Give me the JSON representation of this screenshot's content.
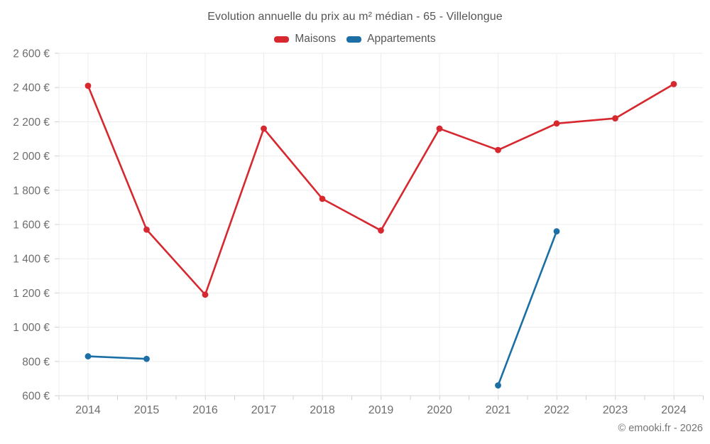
{
  "header": {
    "title": "Evolution annuelle du prix au m² médian - 65 - Villelongue"
  },
  "footer": {
    "credit": "© emooki.fr - 2026"
  },
  "colors": {
    "maisons": "#d7282f",
    "appartements": "#1b6fa5",
    "gridline": "#ececec",
    "axis_line": "#d8d8d8",
    "tick": "#cfcfcf",
    "axis_text": "#6d6d6d"
  },
  "chart_data": {
    "type": "line",
    "title": "Evolution annuelle du prix au m² médian - 65 - Villelongue",
    "xlabel": "",
    "ylabel": "",
    "x_labels": [
      "2014",
      "2015",
      "2016",
      "2017",
      "2018",
      "2019",
      "2020",
      "2021",
      "2022",
      "2023",
      "2024"
    ],
    "ylim": [
      600,
      2600
    ],
    "ytick_values": [
      600,
      800,
      1000,
      1200,
      1400,
      1600,
      1800,
      2000,
      2200,
      2400,
      2600
    ],
    "ytick_labels": [
      "600 €",
      "800 €",
      "1 000 €",
      "1 200 €",
      "1 400 €",
      "1 600 €",
      "1 800 €",
      "2 000 €",
      "2 200 €",
      "2 400 €",
      "2 600 €"
    ],
    "grid": true,
    "legend_position": "top",
    "series": [
      {
        "name": "Maisons",
        "color": "#d7282f",
        "values": [
          2410,
          1570,
          1190,
          2160,
          1750,
          1565,
          2160,
          2035,
          2190,
          2220,
          2420
        ]
      },
      {
        "name": "Appartements",
        "color": "#1b6fa5",
        "values": [
          830,
          815,
          null,
          null,
          null,
          null,
          null,
          660,
          1560,
          null,
          null
        ]
      }
    ]
  }
}
